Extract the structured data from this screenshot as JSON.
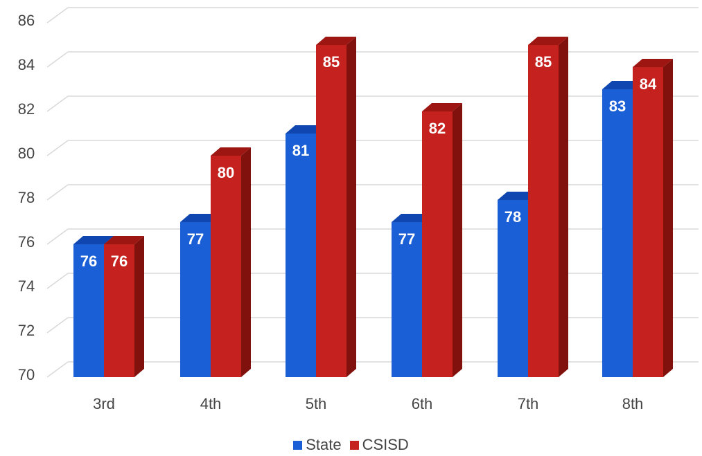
{
  "chart_data": {
    "type": "bar",
    "categories": [
      "3rd",
      "4th",
      "5th",
      "6th",
      "7th",
      "8th"
    ],
    "series": [
      {
        "name": "State",
        "values": [
          76,
          77,
          81,
          77,
          78,
          83
        ]
      },
      {
        "name": "CSISD",
        "values": [
          76,
          80,
          85,
          82,
          85,
          84
        ]
      }
    ],
    "ylim": [
      70,
      86
    ],
    "yticks": [
      "70",
      "72",
      "74",
      "76",
      "78",
      "80",
      "82",
      "84",
      "86"
    ],
    "grid": true,
    "legend_position": "bottom",
    "three_d": true
  },
  "colors": {
    "State": {
      "front": "#1A5FD6",
      "top": "#0F46B0",
      "side": "#0D3A90"
    },
    "CSISD": {
      "front": "#C5221F",
      "top": "#9E1612",
      "side": "#80110D"
    },
    "grid": "#D9D9D9"
  }
}
